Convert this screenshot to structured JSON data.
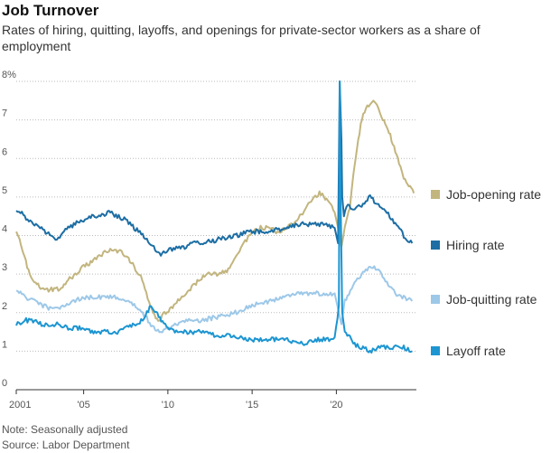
{
  "title": "Job Turnover",
  "subtitle": "Rates of hiring, quitting, layoffs, and openings for private-sector workers as a share of employment",
  "note": "Note: Seasonally adjusted",
  "source": "Source: Labor Department",
  "chart_data": {
    "type": "line",
    "title": "Job Turnover",
    "xlabel": "",
    "ylabel": "",
    "xlim": [
      2001,
      2024.75
    ],
    "ylim": [
      0,
      8
    ],
    "grid": true,
    "legend_position": "right",
    "y_ticks": [
      {
        "value": 0,
        "label": "0"
      },
      {
        "value": 1,
        "label": "1"
      },
      {
        "value": 2,
        "label": "2"
      },
      {
        "value": 3,
        "label": "3"
      },
      {
        "value": 4,
        "label": "4"
      },
      {
        "value": 5,
        "label": "5"
      },
      {
        "value": 6,
        "label": "6"
      },
      {
        "value": 7,
        "label": "7"
      },
      {
        "value": 8,
        "label": "8%"
      }
    ],
    "x_ticks": [
      {
        "value": 2001,
        "label": "2001"
      },
      {
        "value": 2005,
        "label": "'05"
      },
      {
        "value": 2010,
        "label": "'10"
      },
      {
        "value": 2015,
        "label": "'15"
      },
      {
        "value": 2020,
        "label": "'20"
      }
    ],
    "series": [
      {
        "name": "Job-opening rate",
        "color": "#c2b57e",
        "x": [
          2001,
          2001.2,
          2001.5,
          2001.8,
          2002,
          2002.3,
          2002.6,
          2003,
          2003.5,
          2004,
          2004.5,
          2005,
          2005.5,
          2006,
          2006.5,
          2007,
          2007.5,
          2008,
          2008.4,
          2008.8,
          2009.2,
          2009.5,
          2009.8,
          2010.2,
          2010.6,
          2011,
          2011.5,
          2012,
          2012.5,
          2013,
          2013.5,
          2014,
          2014.5,
          2015,
          2015.5,
          2016,
          2016.5,
          2017,
          2017.5,
          2018,
          2018.5,
          2019,
          2019.5,
          2019.9,
          2020.1,
          2020.3,
          2020.5,
          2020.8,
          2021,
          2021.3,
          2021.6,
          2022,
          2022.2,
          2022.4,
          2022.6,
          2022.9,
          2023.2,
          2023.5,
          2023.8,
          2024,
          2024.3,
          2024.6
        ],
        "values": [
          4.1,
          3.9,
          3.4,
          3.0,
          2.8,
          2.7,
          2.6,
          2.6,
          2.6,
          2.8,
          3.0,
          3.2,
          3.3,
          3.5,
          3.6,
          3.6,
          3.5,
          3.2,
          2.9,
          2.4,
          1.9,
          1.8,
          2.0,
          2.1,
          2.3,
          2.5,
          2.7,
          2.9,
          3.0,
          3.0,
          3.1,
          3.4,
          3.8,
          4.1,
          4.2,
          4.2,
          4.1,
          4.2,
          4.3,
          4.6,
          4.9,
          5.1,
          4.9,
          4.6,
          4.2,
          3.7,
          4.2,
          4.7,
          5.6,
          6.5,
          7.2,
          7.4,
          7.5,
          7.4,
          7.2,
          6.9,
          6.6,
          6.2,
          5.8,
          5.5,
          5.3,
          5.1
        ]
      },
      {
        "name": "Hiring rate",
        "color": "#1c6ea4",
        "x": [
          2001,
          2001.5,
          2002,
          2002.5,
          2003,
          2003.5,
          2004,
          2004.5,
          2005,
          2005.5,
          2006,
          2006.5,
          2007,
          2007.5,
          2008,
          2008.5,
          2009,
          2009.5,
          2010,
          2010.5,
          2011,
          2011.5,
          2012,
          2013,
          2014,
          2015,
          2016,
          2017,
          2018,
          2019,
          2019.9,
          2020.1,
          2020.2,
          2020.3,
          2020.35,
          2020.45,
          2020.6,
          2021,
          2021.5,
          2022,
          2022.5,
          2023,
          2023.5,
          2024,
          2024.5
        ],
        "values": [
          4.7,
          4.5,
          4.3,
          4.2,
          4.0,
          3.9,
          4.2,
          4.3,
          4.4,
          4.5,
          4.5,
          4.6,
          4.5,
          4.4,
          4.2,
          4.0,
          3.8,
          3.5,
          3.6,
          3.7,
          3.7,
          3.8,
          3.8,
          3.9,
          4.0,
          4.1,
          4.1,
          4.2,
          4.3,
          4.3,
          4.2,
          3.8,
          8.0,
          6.5,
          5.0,
          4.5,
          4.8,
          4.7,
          4.8,
          5.0,
          4.8,
          4.6,
          4.3,
          4.0,
          3.8
        ]
      },
      {
        "name": "Job-quitting rate",
        "color": "#9dc8e8",
        "x": [
          2001,
          2001.5,
          2002,
          2002.5,
          2003,
          2003.5,
          2004,
          2004.5,
          2005,
          2005.5,
          2006,
          2006.5,
          2007,
          2007.5,
          2008,
          2008.5,
          2009,
          2009.5,
          2010,
          2010.5,
          2011,
          2012,
          2013,
          2014,
          2015,
          2016,
          2017,
          2018,
          2019,
          2019.9,
          2020.1,
          2020.3,
          2020.5,
          2021,
          2021.5,
          2022,
          2022.5,
          2023,
          2023.5,
          2024,
          2024.5
        ],
        "values": [
          2.6,
          2.4,
          2.3,
          2.2,
          2.1,
          2.1,
          2.2,
          2.3,
          2.4,
          2.4,
          2.4,
          2.4,
          2.4,
          2.3,
          2.2,
          2.0,
          1.7,
          1.5,
          1.6,
          1.7,
          1.8,
          1.8,
          1.9,
          2.0,
          2.2,
          2.3,
          2.4,
          2.5,
          2.5,
          2.5,
          2.1,
          1.7,
          2.3,
          2.7,
          3.0,
          3.2,
          3.1,
          2.8,
          2.5,
          2.4,
          2.3
        ]
      },
      {
        "name": "Layoff rate",
        "color": "#1c95d1",
        "x": [
          2001,
          2001.5,
          2002,
          2002.5,
          2003,
          2003.5,
          2004,
          2004.5,
          2005,
          2005.5,
          2006,
          2006.5,
          2007,
          2007.5,
          2008,
          2008.5,
          2009,
          2009.3,
          2009.6,
          2010,
          2010.5,
          2011,
          2012,
          2013,
          2014,
          2015,
          2016,
          2017,
          2018,
          2019,
          2019.9,
          2020.15,
          2020.2,
          2020.25,
          2020.35,
          2020.5,
          2020.8,
          2021,
          2021.5,
          2022,
          2022.5,
          2023,
          2023.5,
          2024,
          2024.5
        ],
        "values": [
          1.7,
          1.8,
          1.8,
          1.7,
          1.7,
          1.7,
          1.6,
          1.6,
          1.6,
          1.5,
          1.5,
          1.5,
          1.5,
          1.6,
          1.7,
          1.8,
          2.2,
          2.0,
          1.8,
          1.6,
          1.5,
          1.5,
          1.5,
          1.4,
          1.4,
          1.3,
          1.3,
          1.3,
          1.2,
          1.3,
          1.3,
          2.2,
          8.5,
          5.0,
          2.0,
          1.5,
          1.4,
          1.2,
          1.1,
          1.0,
          1.1,
          1.1,
          1.1,
          1.1,
          1.0
        ]
      }
    ]
  }
}
